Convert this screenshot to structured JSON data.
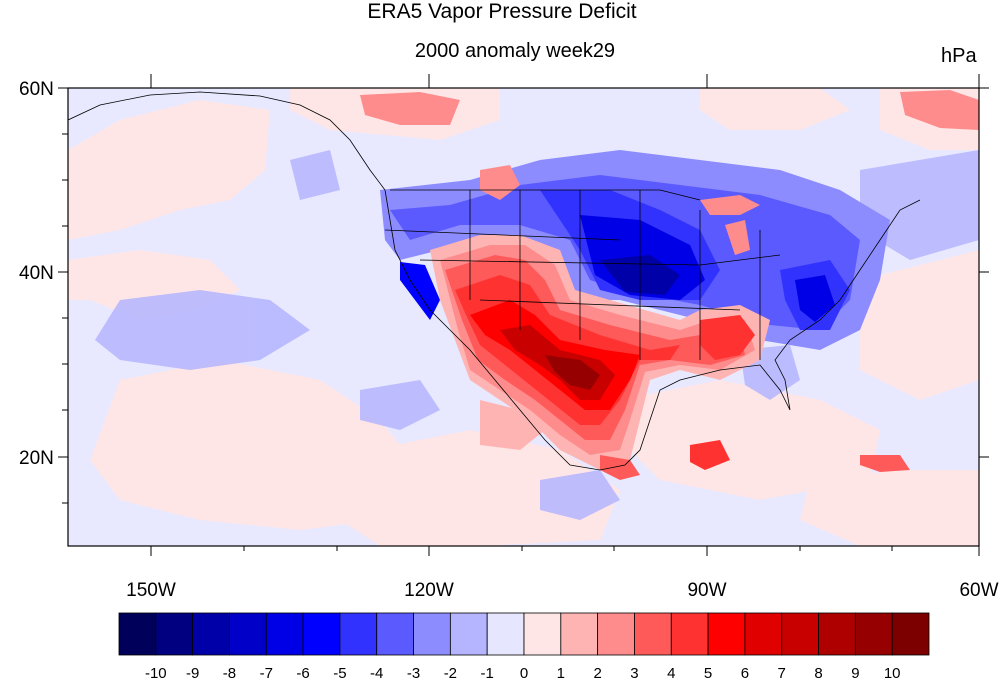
{
  "title": "ERA5 Vapor Pressure Deficit",
  "subtitle": "2000 anomaly week29",
  "units": "hPa",
  "axes": {
    "lon_labels": [
      "150W",
      "120W",
      "90W",
      "60W"
    ],
    "lat_labels": [
      "60N",
      "40N",
      "20N"
    ]
  },
  "colorbar": {
    "labels": [
      "-10",
      "-9",
      "-8",
      "-7",
      "-6",
      "-5",
      "-4",
      "-3",
      "-2",
      "-1",
      "0",
      "1",
      "2",
      "3",
      "4",
      "5",
      "6",
      "7",
      "8",
      "9",
      "10"
    ],
    "colors": [
      "#00005a",
      "#000080",
      "#0000a8",
      "#0000c8",
      "#0000e6",
      "#0000ff",
      "#3232ff",
      "#5a5aff",
      "#8c8cff",
      "#b4b4ff",
      "#e6e6ff",
      "#ffe6e6",
      "#ffb4b4",
      "#ff8c8c",
      "#ff5a5a",
      "#ff3232",
      "#ff0000",
      "#e10000",
      "#c80000",
      "#af0000",
      "#960000",
      "#7d0000"
    ]
  },
  "colors": {
    "neutral_blue": "#e8e8ff",
    "neutral_red": "#ffe6e6",
    "coast": "#000000",
    "frame": "#000000"
  }
}
